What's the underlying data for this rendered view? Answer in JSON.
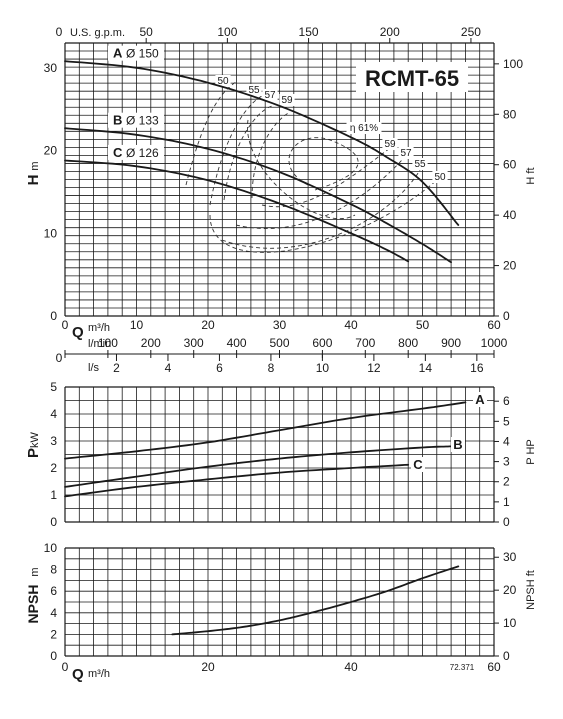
{
  "title": "RCMT-65",
  "figure_code": "72.371",
  "chart_data": [
    {
      "type": "line",
      "panel": "head",
      "xlabel": "Q m³/h",
      "ylabel": "H m",
      "ylabel_right": "H ft",
      "xlim": [
        0,
        60
      ],
      "ylim": [
        0,
        33
      ],
      "x_ticks": [
        0,
        10,
        20,
        30,
        40,
        50,
        60
      ],
      "y_ticks": [
        0,
        10,
        20,
        30
      ],
      "y_ticks_right": [
        0,
        20,
        40,
        60,
        80,
        100
      ],
      "top_axis": {
        "label": "U.S. g.p.m.",
        "ticks": [
          0,
          50,
          100,
          150,
          200,
          250
        ]
      },
      "lmin_axis": {
        "label": "l/min",
        "ticks": [
          0,
          100,
          200,
          300,
          400,
          500,
          600,
          700,
          800,
          900,
          1000
        ]
      },
      "ls_axis": {
        "label": "l/s",
        "ticks": [
          0,
          2,
          4,
          6,
          8,
          10,
          12,
          14,
          16
        ]
      },
      "grid": true,
      "series": [
        {
          "name": "A",
          "label": "Ø 150",
          "x": [
            0,
            10,
            20,
            30,
            40,
            45,
            50,
            55
          ],
          "y": [
            30.8,
            30.0,
            28.2,
            25.4,
            21.6,
            19.2,
            16.2,
            11.0
          ]
        },
        {
          "name": "B",
          "label": "Ø 133",
          "x": [
            0,
            10,
            20,
            30,
            40,
            45,
            50,
            54
          ],
          "y": [
            22.7,
            21.9,
            20.2,
            17.4,
            13.5,
            11.2,
            8.7,
            6.5
          ]
        },
        {
          "name": "C",
          "label": "Ø 126",
          "x": [
            0,
            10,
            20,
            30,
            40,
            45,
            48
          ],
          "y": [
            18.8,
            18.1,
            16.4,
            13.6,
            10.0,
            8.0,
            6.6
          ]
        }
      ],
      "efficiency_labels": [
        "50",
        "55",
        "57",
        "59",
        "η 61%",
        "59",
        "57",
        "55",
        "50"
      ]
    },
    {
      "type": "line",
      "panel": "power",
      "xlabel": "",
      "ylabel": "P kW",
      "ylabel_right": "P HP",
      "xlim": [
        0,
        60
      ],
      "ylim": [
        0,
        5
      ],
      "y_ticks": [
        0,
        1,
        2,
        3,
        4,
        5
      ],
      "y_ticks_right": [
        0,
        1,
        2,
        3,
        4,
        5,
        6
      ],
      "grid": true,
      "series": [
        {
          "name": "A",
          "x": [
            0,
            10,
            20,
            30,
            40,
            50,
            56
          ],
          "y": [
            2.35,
            2.62,
            2.95,
            3.4,
            3.85,
            4.2,
            4.43
          ]
        },
        {
          "name": "B",
          "x": [
            0,
            10,
            20,
            30,
            40,
            50,
            54
          ],
          "y": [
            1.3,
            1.68,
            2.05,
            2.35,
            2.58,
            2.76,
            2.8
          ]
        },
        {
          "name": "C",
          "x": [
            0,
            10,
            20,
            30,
            40,
            48
          ],
          "y": [
            0.95,
            1.3,
            1.58,
            1.83,
            2.0,
            2.12
          ]
        }
      ]
    },
    {
      "type": "line",
      "panel": "npsh",
      "xlabel": "Q m³/h",
      "ylabel": "NPSH m",
      "ylabel_right": "NPSH ft",
      "xlim": [
        0,
        60
      ],
      "ylim": [
        0,
        10
      ],
      "x_ticks": [
        0,
        20,
        40,
        60
      ],
      "y_ticks": [
        0,
        2,
        4,
        6,
        8,
        10
      ],
      "y_ticks_right": [
        0,
        10,
        20,
        30
      ],
      "grid": true,
      "series": [
        {
          "name": "NPSH",
          "x": [
            15,
            20,
            25,
            30,
            35,
            40,
            45,
            50,
            55
          ],
          "y": [
            2.0,
            2.3,
            2.7,
            3.3,
            4.1,
            5.0,
            6.0,
            7.2,
            8.3
          ]
        }
      ]
    }
  ]
}
